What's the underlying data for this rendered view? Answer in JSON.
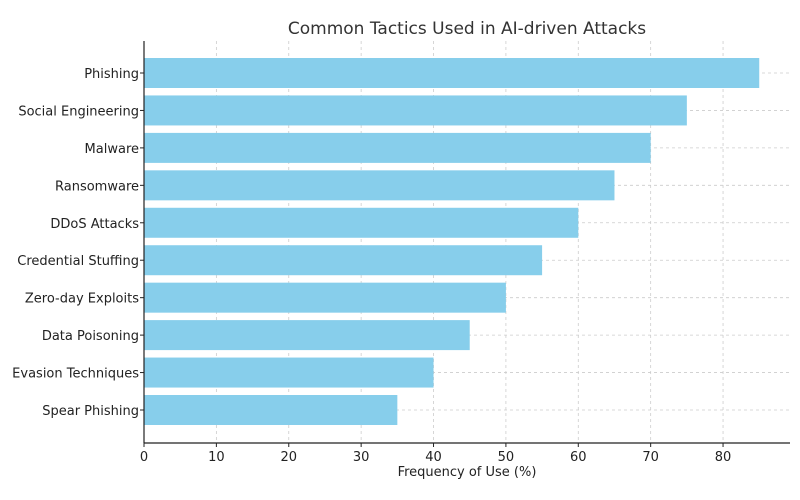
{
  "chart_data": {
    "type": "bar",
    "orientation": "horizontal",
    "title": "Common Tactics Used in AI-driven Attacks",
    "xlabel": "Frequency of Use (%)",
    "ylabel": "",
    "xlim": [
      0,
      89.25
    ],
    "xticks": [
      0,
      10,
      20,
      30,
      40,
      50,
      60,
      70,
      80
    ],
    "grid": true,
    "categories": [
      "Phishing",
      "Social Engineering",
      "Malware",
      "Ransomware",
      "DDoS Attacks",
      "Credential Stuffing",
      "Zero-day Exploits",
      "Data Poisoning",
      "Evasion Techniques",
      "Spear Phishing"
    ],
    "values": [
      85,
      75,
      70,
      65,
      60,
      55,
      50,
      45,
      40,
      35
    ],
    "bar_color": "#87ceeb"
  }
}
